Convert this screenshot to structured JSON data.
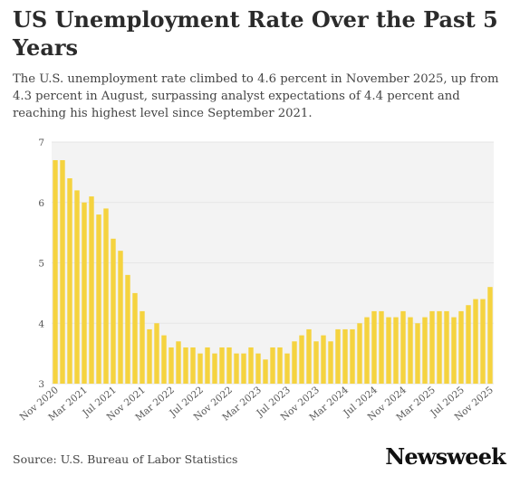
{
  "title": "US Unemployment Rate Over the Past 5 Years",
  "subtitle": "The U.S. unemployment rate climbed to 4.6 percent in November 2025, up from 4.3 percent in August, surpassing analyst expectations of 4.4 percent and reaching his highest level since September 2021.",
  "source": "Source: U.S. Bureau of Labor Statistics",
  "logo": "Newsweek",
  "colors": {
    "bar": "#f5d33f",
    "grid": "#e6e6e6",
    "panel": "#f3f3f3"
  },
  "chart_data": {
    "type": "bar",
    "title": "US Unemployment Rate Over the Past 5 Years",
    "xlabel": "",
    "ylabel": "",
    "ylim": [
      3,
      7
    ],
    "yticks": [
      3,
      4,
      5,
      6,
      7
    ],
    "grid": true,
    "legend": "none",
    "tick_labels": [
      "Nov 2020",
      "Mar 2021",
      "Jul 2021",
      "Nov 2021",
      "Mar 2022",
      "Jul 2022",
      "Nov 2022",
      "Mar 2023",
      "Jul 2023",
      "Nov 2023",
      "Mar 2024",
      "Jul 2024",
      "Nov 2024",
      "Mar 2025",
      "Jul 2025",
      "Nov 2025"
    ],
    "categories": [
      "Nov 2020",
      "Dec 2020",
      "Jan 2021",
      "Feb 2021",
      "Mar 2021",
      "Apr 2021",
      "May 2021",
      "Jun 2021",
      "Jul 2021",
      "Aug 2021",
      "Sep 2021",
      "Oct 2021",
      "Nov 2021",
      "Dec 2021",
      "Jan 2022",
      "Feb 2022",
      "Mar 2022",
      "Apr 2022",
      "May 2022",
      "Jun 2022",
      "Jul 2022",
      "Aug 2022",
      "Sep 2022",
      "Oct 2022",
      "Nov 2022",
      "Dec 2022",
      "Jan 2023",
      "Feb 2023",
      "Mar 2023",
      "Apr 2023",
      "May 2023",
      "Jun 2023",
      "Jul 2023",
      "Aug 2023",
      "Sep 2023",
      "Oct 2023",
      "Nov 2023",
      "Dec 2023",
      "Jan 2024",
      "Feb 2024",
      "Mar 2024",
      "Apr 2024",
      "May 2024",
      "Jun 2024",
      "Jul 2024",
      "Aug 2024",
      "Sep 2024",
      "Oct 2024",
      "Nov 2024",
      "Dec 2024",
      "Jan 2025",
      "Feb 2025",
      "Mar 2025",
      "Apr 2025",
      "May 2025",
      "Jun 2025",
      "Jul 2025",
      "Aug 2025",
      "Sep 2025",
      "Oct 2025",
      "Nov 2025"
    ],
    "values": [
      6.7,
      6.7,
      6.4,
      6.2,
      6.0,
      6.1,
      5.8,
      5.9,
      5.4,
      5.2,
      4.8,
      4.5,
      4.2,
      3.9,
      4.0,
      3.8,
      3.6,
      3.7,
      3.6,
      3.6,
      3.5,
      3.6,
      3.5,
      3.6,
      3.6,
      3.5,
      3.5,
      3.6,
      3.5,
      3.4,
      3.6,
      3.6,
      3.5,
      3.7,
      3.8,
      3.9,
      3.7,
      3.8,
      3.7,
      3.9,
      3.9,
      3.9,
      4.0,
      4.1,
      4.2,
      4.2,
      4.1,
      4.1,
      4.2,
      4.1,
      4.0,
      4.1,
      4.2,
      4.2,
      4.2,
      4.1,
      4.2,
      4.3,
      4.4,
      4.4,
      4.6
    ]
  }
}
